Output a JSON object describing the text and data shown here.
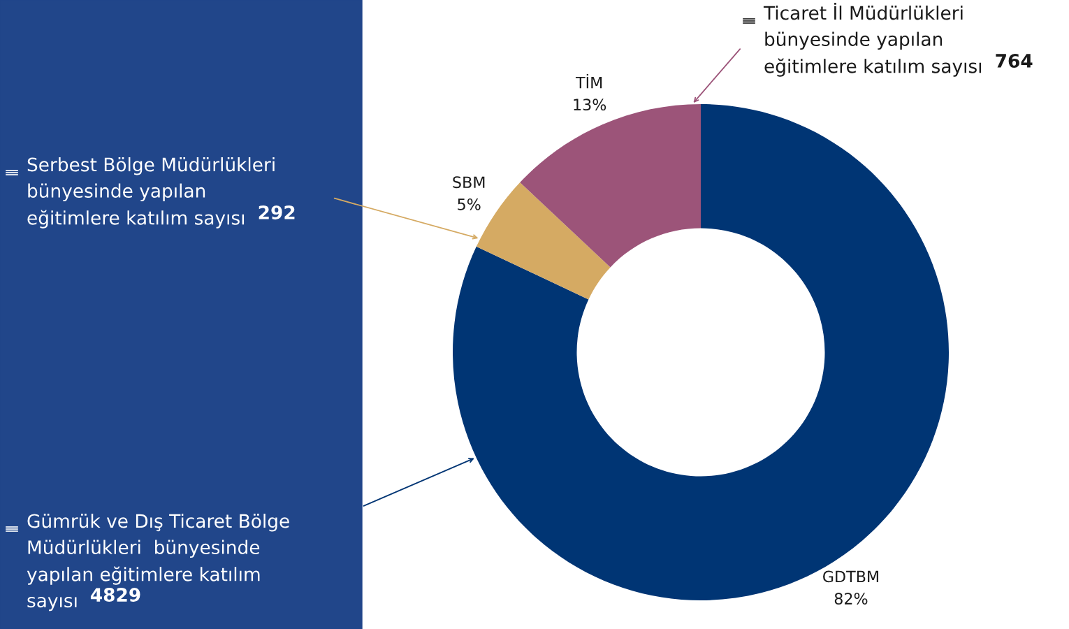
{
  "chart_data": {
    "type": "donut",
    "categories": [
      "GDTBM",
      "SBM",
      "TİM"
    ],
    "values": [
      82,
      5,
      13
    ],
    "colors": [
      "#003574",
      "#d5aa63",
      "#9c5479"
    ],
    "value_labels": [
      "82%",
      "5%",
      "13%"
    ],
    "annotations": [
      "Gümrük ve Dış Ticaret Bölge\nMüdürlükleri  bünyesinde\nyapılan eğitimlere katılım\nsayısı  4829",
      "Serbest Bölge Müdürlükleri\nbünyesinde yapılan\neğitimlere katılım sayısı  292",
      "Ticaret İl Müdürlükleri\nbünyesinde yapılan\neğitimlere katılım sayısı  764"
    ]
  }
}
